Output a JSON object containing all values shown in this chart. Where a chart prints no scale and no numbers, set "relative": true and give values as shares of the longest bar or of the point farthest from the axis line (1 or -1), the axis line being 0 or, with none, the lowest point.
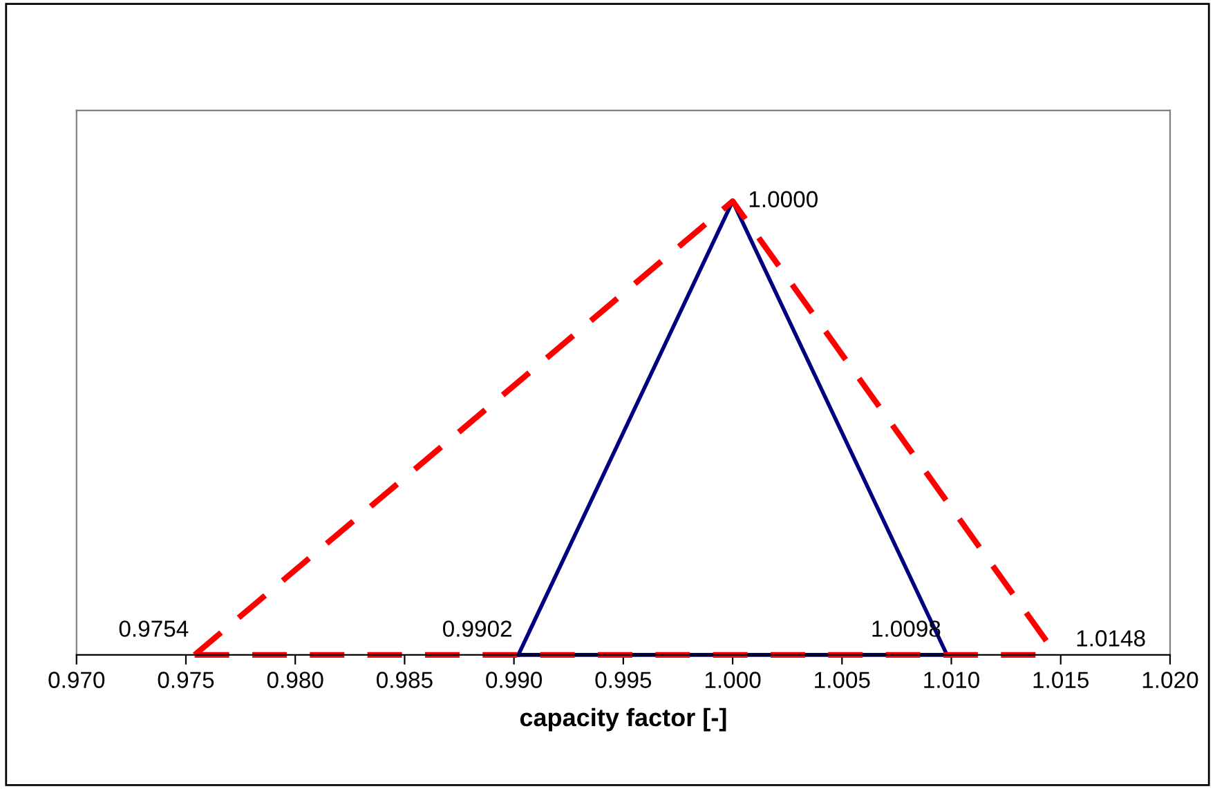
{
  "chart_data": {
    "type": "line",
    "xlabel": "capacity factor [-]",
    "relative": true,
    "xlim": [
      0.97,
      1.02
    ],
    "xticks": [
      {
        "value": 0.97,
        "label": "0.970"
      },
      {
        "value": 0.975,
        "label": "0.975"
      },
      {
        "value": 0.98,
        "label": "0.980"
      },
      {
        "value": 0.985,
        "label": "0.985"
      },
      {
        "value": 0.99,
        "label": "0.990"
      },
      {
        "value": 0.995,
        "label": "0.995"
      },
      {
        "value": 1.0,
        "label": "1.000"
      },
      {
        "value": 1.005,
        "label": "1.005"
      },
      {
        "value": 1.01,
        "label": "1.010"
      },
      {
        "value": 1.015,
        "label": "1.015"
      },
      {
        "value": 1.02,
        "label": "1.020"
      }
    ],
    "series": [
      {
        "color": "#000080",
        "line_style": "solid",
        "x": [
          0.9902,
          1.0,
          1.0098
        ],
        "values": [
          0,
          1,
          0
        ]
      },
      {
        "color": "#000080",
        "line_style": "solid",
        "x": [
          0.9902,
          1.0098
        ],
        "values": [
          0,
          0
        ]
      },
      {
        "color": "#ff0000",
        "line_style": "dashed",
        "x": [
          0.9754,
          1.0,
          1.0148
        ],
        "values": [
          0,
          1,
          0
        ]
      },
      {
        "color": "#ff0000",
        "line_style": "dashed",
        "x": [
          0.9754,
          1.0148
        ],
        "values": [
          0,
          0
        ]
      }
    ],
    "annotations": [
      {
        "text": "1.0000",
        "x": 1.0,
        "y": 1
      },
      {
        "text": "0.9754",
        "x": 0.9754,
        "y": 0
      },
      {
        "text": "0.9902",
        "x": 0.9902,
        "y": 0
      },
      {
        "text": "1.0098",
        "x": 1.0098,
        "y": 0
      },
      {
        "text": "1.0148",
        "x": 1.0148,
        "y": 0
      }
    ],
    "grid": false,
    "legend": false,
    "tick_labels": "x"
  }
}
